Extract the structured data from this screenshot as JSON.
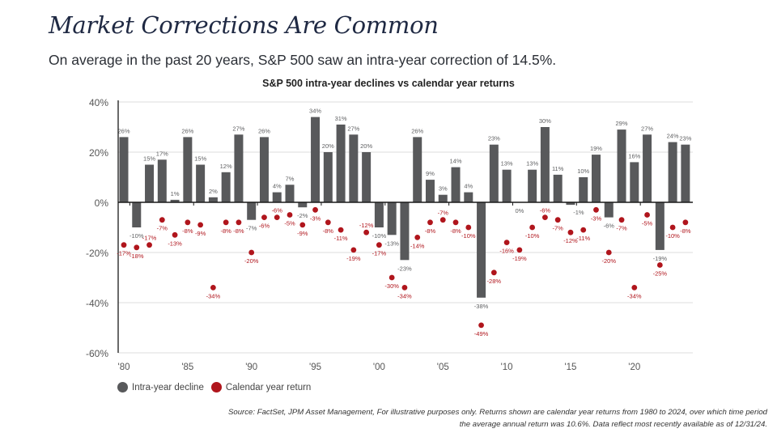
{
  "header": {
    "title": "Market Corrections Are Common",
    "subtitle": "On average in the past 20 years, S&P 500 saw an intra-year correction of 14.5%."
  },
  "footer": {
    "line1": "Source: FactSet, JPM Asset Management, For illustrative purposes only. Returns shown are calendar year returns from 1980 to 2024, over which time period",
    "line2": "the average annual return was 10.6%. Data reflect most recently available as of 12/31/24."
  },
  "colors": {
    "bar": "#58595b",
    "dot": "#b0151c",
    "bar_label": "#5f6062",
    "dot_label": "#b0151c",
    "grid": "#dcdcdc",
    "axis": "#1a1a1a"
  },
  "chart_data": {
    "type": "bar",
    "title": "S&P 500 intra-year declines vs calendar year returns",
    "xlabel": "",
    "ylabel": "",
    "ylim": [
      -60,
      40
    ],
    "yticks": [
      40,
      20,
      0,
      -20,
      -40,
      -60
    ],
    "ytick_labels": [
      "40%",
      "20%",
      "0%",
      "-20%",
      "-40%",
      "-60%"
    ],
    "xticks": [
      {
        "year": 1980,
        "label": "'80"
      },
      {
        "year": 1985,
        "label": "'85"
      },
      {
        "year": 1990,
        "label": "'90"
      },
      {
        "year": 1995,
        "label": "'95"
      },
      {
        "year": 2000,
        "label": "'00"
      },
      {
        "year": 2005,
        "label": "'05"
      },
      {
        "year": 2010,
        "label": "'10"
      },
      {
        "year": 2015,
        "label": "'15"
      },
      {
        "year": 2020,
        "label": "'20"
      }
    ],
    "grid": true,
    "legend_position": "bottom-left",
    "x": [
      1980,
      1981,
      1982,
      1983,
      1984,
      1985,
      1986,
      1987,
      1988,
      1989,
      1990,
      1991,
      1992,
      1993,
      1994,
      1995,
      1996,
      1997,
      1998,
      1999,
      2000,
      2001,
      2002,
      2003,
      2004,
      2005,
      2006,
      2007,
      2008,
      2009,
      2010,
      2011,
      2012,
      2013,
      2014,
      2015,
      2016,
      2017,
      2018,
      2019,
      2020,
      2021,
      2022,
      2023,
      2024
    ],
    "series": [
      {
        "name": "Intra-year decline",
        "kind": "bar",
        "values": [
          26,
          -10,
          15,
          17,
          1,
          26,
          15,
          2,
          12,
          27,
          -7,
          26,
          4,
          7,
          -2,
          34,
          20,
          31,
          27,
          20,
          -10,
          -13,
          -23,
          26,
          9,
          3,
          14,
          4,
          -38,
          23,
          13,
          0,
          13,
          30,
          11,
          -1,
          10,
          19,
          -6,
          29,
          16,
          27,
          -19,
          24,
          23
        ]
      },
      {
        "name": "Calendar year return",
        "kind": "scatter",
        "values": [
          -17,
          -18,
          -17,
          -7,
          -13,
          -8,
          -9,
          -34,
          -8,
          -8,
          -20,
          -6,
          -6,
          -5,
          -9,
          -3,
          -8,
          -11,
          -19,
          -12,
          -17,
          -30,
          -34,
          -14,
          -8,
          -7,
          -8,
          -10,
          -49,
          -28,
          -16,
          -19,
          -10,
          -6,
          -7,
          -12,
          -11,
          -3,
          -20,
          -7,
          -34,
          -5,
          -25,
          -10,
          -8
        ]
      }
    ]
  }
}
